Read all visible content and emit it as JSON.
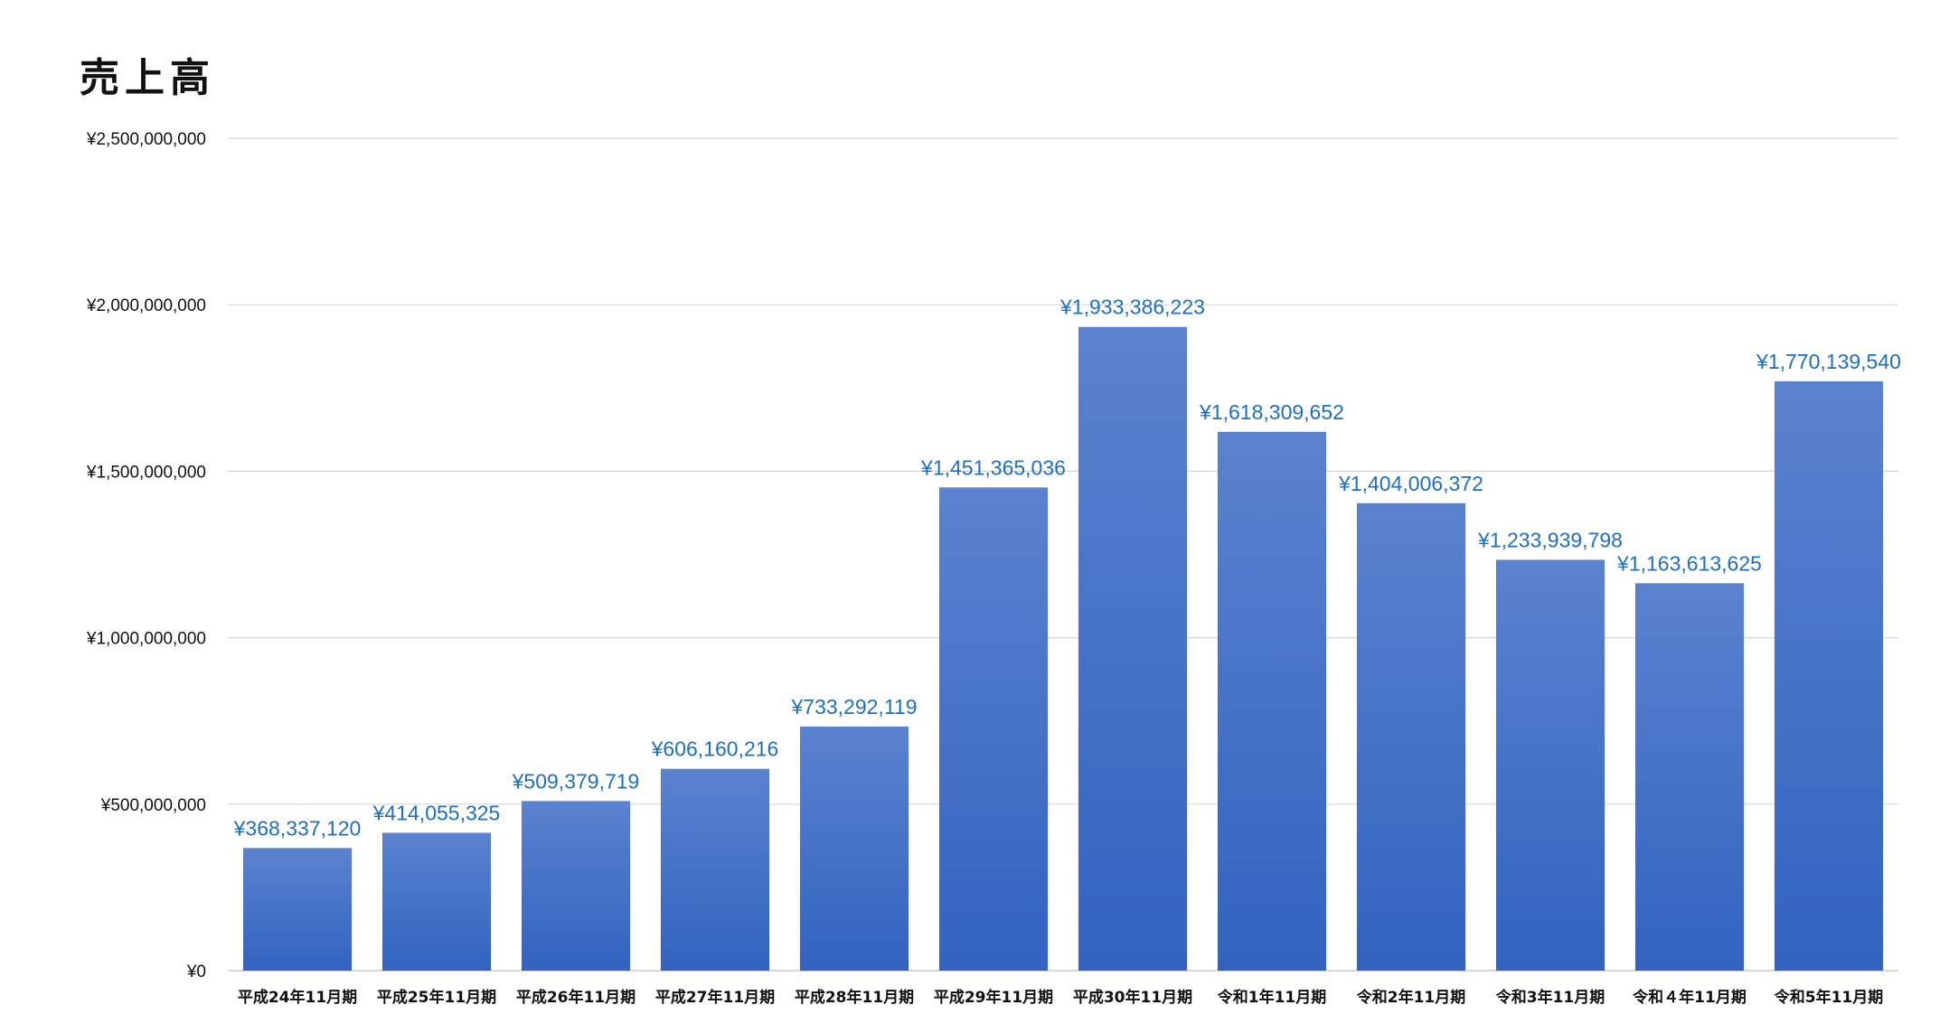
{
  "chart_data": {
    "type": "bar",
    "title": "売上高",
    "xlabel": "",
    "ylabel": "",
    "ylim": [
      0,
      2500000000
    ],
    "yticks": [
      0,
      500000000,
      1000000000,
      1500000000,
      2000000000,
      2500000000
    ],
    "ytick_labels": [
      "¥0",
      "¥500,000,000",
      "¥1,000,000,000",
      "¥1,500,000,000",
      "¥2,000,000,000",
      "¥2,500,000,000"
    ],
    "grid": true,
    "legend": "none",
    "categories": [
      "平成24年11月期",
      "平成25年11月期",
      "平成26年11月期",
      "平成27年11月期",
      "平成28年11月期",
      "平成29年11月期",
      "平成30年11月期",
      "令和1年11月期",
      "令和2年11月期",
      "令和3年11月期",
      "令和４年11月期",
      "令和5年11月期"
    ],
    "values": [
      368337120,
      414055325,
      509379719,
      606160216,
      733292119,
      1451365036,
      1933386223,
      1618309652,
      1404006372,
      1233939798,
      1163613625,
      1770139540
    ],
    "data_labels": [
      "¥368,337,120",
      "¥414,055,325",
      "¥509,379,719",
      "¥606,160,216",
      "¥733,292,119",
      "¥1,451,365,036",
      "¥1,933,386,223",
      "¥1,618,309,652",
      "¥1,404,006,372",
      "¥1,233,939,798",
      "¥1,163,613,625",
      "¥1,770,139,540"
    ],
    "colors": {
      "bar_top": "#5b82cf",
      "bar_bottom": "#3163bf",
      "data_label": "#1f6fbf",
      "grid": "#d6d6d6",
      "axis": "#bfbfbf"
    }
  }
}
